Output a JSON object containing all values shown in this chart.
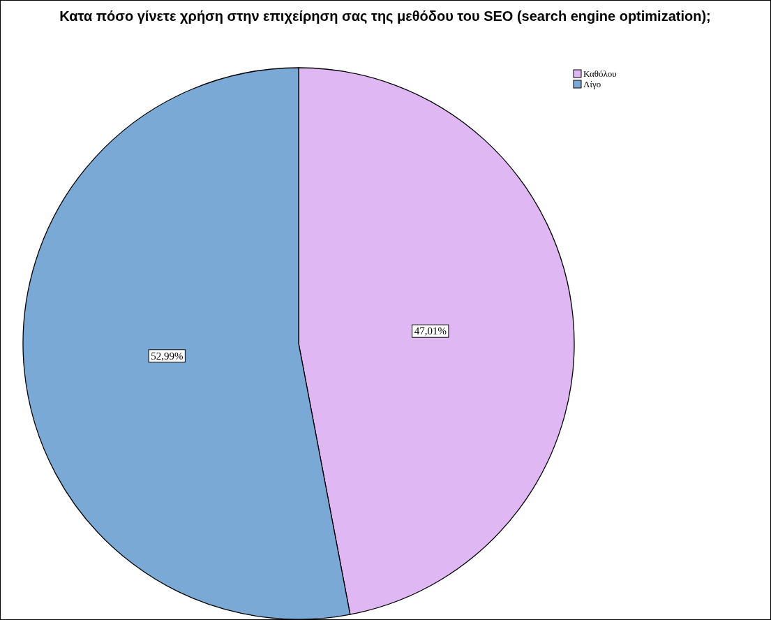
{
  "chart_data": {
    "type": "pie",
    "title": "Κατα πόσο γίνετε χρήση στην επιχείρηση σας της μεθόδου του SEO (search engine optimization);",
    "categories": [
      "Καθόλου",
      "Λίγο"
    ],
    "values": [
      47.01,
      52.99
    ],
    "colors": [
      "#dfb8f3",
      "#7ba9d6"
    ],
    "value_labels": [
      "47,01%",
      "52,99%"
    ],
    "legend": "top right"
  }
}
